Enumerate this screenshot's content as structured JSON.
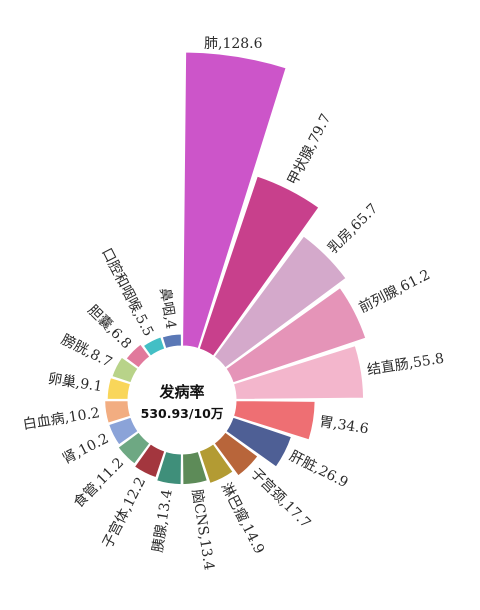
{
  "chart_data": {
    "type": "pie",
    "subtype": "radial-bar",
    "center": {
      "title": "发病率",
      "value": "530.93/10万"
    },
    "categories": [
      "肺",
      "甲状腺",
      "乳房",
      "前列腺",
      "结直肠",
      "胃",
      "肝脏",
      "子宫颈",
      "淋巴瘤",
      "脑CNS",
      "胰腺",
      "子宫体",
      "食管",
      "肾",
      "白血病",
      "卵巢",
      "膀胱",
      "胆囊",
      "口腔和咽喉",
      "鼻咽"
    ],
    "values": [
      128.6,
      79.7,
      65.7,
      61.2,
      55.8,
      34.6,
      26.9,
      17.7,
      14.9,
      13.4,
      13.4,
      12.2,
      11.2,
      10.2,
      10.2,
      9.1,
      8.7,
      6.8,
      5.5,
      4
    ],
    "labels": [
      "肺,128.6",
      "甲状腺,79.7",
      "乳房,65.7",
      "前列腺,61.2",
      "结直肠,55.8",
      "胃,34.6",
      "肝脏,26.9",
      "子宫颈,17.7",
      "淋巴瘤,14.9",
      "脑CNS,13.4",
      "胰腺,13.4",
      "子宫体,12.2",
      "食管,11.2",
      "肾,10.2",
      "白血病,10.2",
      "卵巢,9.1",
      "膀胱,8.7",
      "胆囊,6.8",
      "口腔和咽喉,5.5",
      "鼻咽,4"
    ],
    "colors": [
      "#cc55c9",
      "#c8408c",
      "#d4a9cb",
      "#e594b8",
      "#f3b6cc",
      "#ee6f73",
      "#4e5f95",
      "#b8653a",
      "#b39b33",
      "#5d8b58",
      "#3f8f7a",
      "#a3363e",
      "#6ea883",
      "#8ba3d8",
      "#f2ad81",
      "#f9d65a",
      "#b8d389",
      "#e1799c",
      "#43bfc5",
      "#5a78b6"
    ]
  }
}
